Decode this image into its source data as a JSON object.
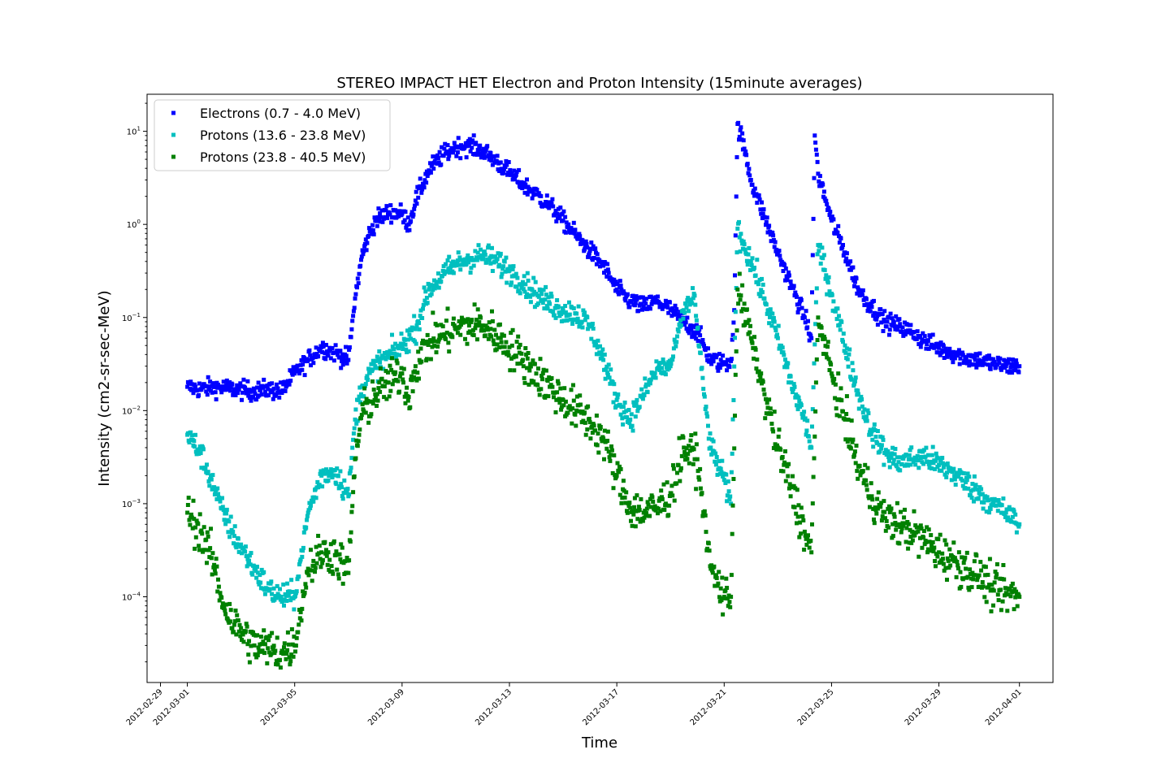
{
  "chart_data": {
    "type": "scatter",
    "title": "STEREO IMPACT HET Electron and Proton Intensity (15minute averages)",
    "xlabel": "Time",
    "ylabel": "Intensity (cm2-sr-sec-MeV)",
    "xlim": [
      "2012-02-28T12:00",
      "2012-04-02T06:00"
    ],
    "ylim": [
      1.2e-05,
      25
    ],
    "yscale": "log",
    "x_ticks": [
      "2012-02-29",
      "2012-03-01",
      "2012-03-05",
      "2012-03-09",
      "2012-03-13",
      "2012-03-17",
      "2012-03-21",
      "2012-03-25",
      "2012-03-29",
      "2012-04-01"
    ],
    "y_ticks": [
      {
        "value": 0.0001,
        "base": "10",
        "exp": "−4"
      },
      {
        "value": 0.001,
        "base": "10",
        "exp": "−3"
      },
      {
        "value": 0.01,
        "base": "10",
        "exp": "−2"
      },
      {
        "value": 0.1,
        "base": "10",
        "exp": "−1"
      },
      {
        "value": 1,
        "base": "10",
        "exp": "0"
      },
      {
        "value": 10,
        "base": "10",
        "exp": "1"
      }
    ],
    "grid": false,
    "legend_position": "top-left",
    "series": [
      {
        "name": "Electrons (0.7 - 4.0 MeV)",
        "color": "#0000ff",
        "points": [
          [
            "2012-03-01T00:00",
            0.018
          ],
          [
            "2012-03-01T12:00",
            0.017
          ],
          [
            "2012-03-02T00:00",
            0.018
          ],
          [
            "2012-03-02T18:00",
            0.017
          ],
          [
            "2012-03-03T12:00",
            0.016
          ],
          [
            "2012-03-04T00:00",
            0.017
          ],
          [
            "2012-03-04T12:00",
            0.016
          ],
          [
            "2012-03-05T00:00",
            0.025
          ],
          [
            "2012-03-05T12:00",
            0.035
          ],
          [
            "2012-03-06T00:00",
            0.048
          ],
          [
            "2012-03-06T12:00",
            0.042
          ],
          [
            "2012-03-07T00:00",
            0.035
          ],
          [
            "2012-03-07T06:00",
            0.16
          ],
          [
            "2012-03-07T12:00",
            0.45
          ],
          [
            "2012-03-07T18:00",
            0.75
          ],
          [
            "2012-03-08T00:00",
            1.1
          ],
          [
            "2012-03-08T12:00",
            1.35
          ],
          [
            "2012-03-09T00:00",
            1.3
          ],
          [
            "2012-03-09T06:00",
            1.0
          ],
          [
            "2012-03-09T12:00",
            1.8
          ],
          [
            "2012-03-10T00:00",
            3.8
          ],
          [
            "2012-03-10T12:00",
            5.5
          ],
          [
            "2012-03-11T00:00",
            6.8
          ],
          [
            "2012-03-11T12:00",
            7.0
          ],
          [
            "2012-03-12T00:00",
            6.2
          ],
          [
            "2012-03-12T12:00",
            4.8
          ],
          [
            "2012-03-13T00:00",
            3.6
          ],
          [
            "2012-03-13T12:00",
            2.7
          ],
          [
            "2012-03-14T00:00",
            2.1
          ],
          [
            "2012-03-14T12:00",
            1.6
          ],
          [
            "2012-03-15T00:00",
            1.1
          ],
          [
            "2012-03-15T12:00",
            0.75
          ],
          [
            "2012-03-16T00:00",
            0.52
          ],
          [
            "2012-03-16T12:00",
            0.36
          ],
          [
            "2012-03-17T00:00",
            0.2
          ],
          [
            "2012-03-17T12:00",
            0.15
          ],
          [
            "2012-03-18T00:00",
            0.13
          ],
          [
            "2012-03-18T12:00",
            0.15
          ],
          [
            "2012-03-19T00:00",
            0.12
          ],
          [
            "2012-03-19T12:00",
            0.09
          ],
          [
            "2012-03-20T00:00",
            0.07
          ],
          [
            "2012-03-20T12:00",
            0.035
          ],
          [
            "2012-03-21T00:00",
            0.032
          ],
          [
            "2012-03-21T06:00",
            0.034
          ],
          [
            "2012-03-21T09:00",
            0.12
          ],
          [
            "2012-03-21T12:00",
            12.0
          ],
          [
            "2012-03-21T18:00",
            6.5
          ],
          [
            "2012-03-22T00:00",
            3.0
          ],
          [
            "2012-03-22T12:00",
            1.2
          ],
          [
            "2012-03-23T00:00",
            0.5
          ],
          [
            "2012-03-23T12:00",
            0.22
          ],
          [
            "2012-03-24T00:00",
            0.1
          ],
          [
            "2012-03-24T06:00",
            0.06
          ],
          [
            "2012-03-24T09:00",
            9.0
          ],
          [
            "2012-03-24T12:00",
            3.5
          ],
          [
            "2012-03-25T00:00",
            1.1
          ],
          [
            "2012-03-25T12:00",
            0.5
          ],
          [
            "2012-03-26T00:00",
            0.2
          ],
          [
            "2012-03-26T12:00",
            0.13
          ],
          [
            "2012-03-27T00:00",
            0.09
          ],
          [
            "2012-03-27T12:00",
            0.08
          ],
          [
            "2012-03-28T00:00",
            0.07
          ],
          [
            "2012-03-28T12:00",
            0.055
          ],
          [
            "2012-03-29T00:00",
            0.047
          ],
          [
            "2012-03-29T12:00",
            0.042
          ],
          [
            "2012-03-30T00:00",
            0.037
          ],
          [
            "2012-03-30T12:00",
            0.035
          ],
          [
            "2012-03-31T00:00",
            0.032
          ],
          [
            "2012-03-31T12:00",
            0.03
          ],
          [
            "2012-04-01T00:00",
            0.03
          ]
        ]
      },
      {
        "name": "Protons (13.6 - 23.8 MeV)",
        "color": "#00bfbf",
        "points": [
          [
            "2012-03-01T00:00",
            0.0055
          ],
          [
            "2012-03-01T12:00",
            0.0035
          ],
          [
            "2012-03-02T00:00",
            0.0015
          ],
          [
            "2012-03-02T06:00",
            0.0009
          ],
          [
            "2012-03-02T18:00",
            0.00045
          ],
          [
            "2012-03-03T12:00",
            0.0002
          ],
          [
            "2012-03-04T00:00",
            0.00012
          ],
          [
            "2012-03-04T12:00",
            0.0001
          ],
          [
            "2012-03-05T00:00",
            0.0001
          ],
          [
            "2012-03-05T12:00",
            0.0008
          ],
          [
            "2012-03-06T00:00",
            0.002
          ],
          [
            "2012-03-06T12:00",
            0.0023
          ],
          [
            "2012-03-07T00:00",
            0.0012
          ],
          [
            "2012-03-07T06:00",
            0.008
          ],
          [
            "2012-03-07T12:00",
            0.018
          ],
          [
            "2012-03-08T00:00",
            0.03
          ],
          [
            "2012-03-08T12:00",
            0.038
          ],
          [
            "2012-03-09T00:00",
            0.05
          ],
          [
            "2012-03-09T12:00",
            0.075
          ],
          [
            "2012-03-10T00:00",
            0.2
          ],
          [
            "2012-03-10T12:00",
            0.28
          ],
          [
            "2012-03-11T00:00",
            0.37
          ],
          [
            "2012-03-11T12:00",
            0.43
          ],
          [
            "2012-03-12T00:00",
            0.46
          ],
          [
            "2012-03-12T12:00",
            0.4
          ],
          [
            "2012-03-13T00:00",
            0.32
          ],
          [
            "2012-03-13T12:00",
            0.24
          ],
          [
            "2012-03-14T00:00",
            0.18
          ],
          [
            "2012-03-14T12:00",
            0.14
          ],
          [
            "2012-03-15T00:00",
            0.12
          ],
          [
            "2012-03-15T12:00",
            0.11
          ],
          [
            "2012-03-16T00:00",
            0.08
          ],
          [
            "2012-03-16T12:00",
            0.035
          ],
          [
            "2012-03-17T00:00",
            0.013
          ],
          [
            "2012-03-17T12:00",
            0.008
          ],
          [
            "2012-03-18T00:00",
            0.015
          ],
          [
            "2012-03-18T12:00",
            0.028
          ],
          [
            "2012-03-19T00:00",
            0.03
          ],
          [
            "2012-03-19T12:00",
            0.12
          ],
          [
            "2012-03-19T21:00",
            0.18
          ],
          [
            "2012-03-20T06:00",
            0.015
          ],
          [
            "2012-03-20T12:00",
            0.004
          ],
          [
            "2012-03-21T00:00",
            0.0018
          ],
          [
            "2012-03-21T06:00",
            0.001
          ],
          [
            "2012-03-21T12:00",
            0.9
          ],
          [
            "2012-03-22T00:00",
            0.4
          ],
          [
            "2012-03-22T12:00",
            0.16
          ],
          [
            "2012-03-23T00:00",
            0.06
          ],
          [
            "2012-03-23T12:00",
            0.02
          ],
          [
            "2012-03-24T00:00",
            0.008
          ],
          [
            "2012-03-24T06:00",
            0.004
          ],
          [
            "2012-03-24T12:00",
            0.6
          ],
          [
            "2012-03-25T00:00",
            0.18
          ],
          [
            "2012-03-25T12:00",
            0.05
          ],
          [
            "2012-03-26T00:00",
            0.015
          ],
          [
            "2012-03-26T12:00",
            0.006
          ],
          [
            "2012-03-27T00:00",
            0.0035
          ],
          [
            "2012-03-27T12:00",
            0.0028
          ],
          [
            "2012-03-28T00:00",
            0.003
          ],
          [
            "2012-03-28T12:00",
            0.0032
          ],
          [
            "2012-03-29T00:00",
            0.0026
          ],
          [
            "2012-03-29T12:00",
            0.0022
          ],
          [
            "2012-03-30T00:00",
            0.0017
          ],
          [
            "2012-03-30T12:00",
            0.0013
          ],
          [
            "2012-03-31T00:00",
            0.001
          ],
          [
            "2012-03-31T12:00",
            0.0008
          ],
          [
            "2012-04-01T00:00",
            0.0006
          ]
        ]
      },
      {
        "name": "Protons (23.8 - 40.5 MeV)",
        "color": "#008000",
        "points": [
          [
            "2012-03-01T00:00",
            0.0008
          ],
          [
            "2012-03-01T12:00",
            0.0005
          ],
          [
            "2012-03-02T00:00",
            0.00022
          ],
          [
            "2012-03-02T06:00",
            0.0001
          ],
          [
            "2012-03-02T18:00",
            5e-05
          ],
          [
            "2012-03-03T12:00",
            3e-05
          ],
          [
            "2012-03-04T00:00",
            2.8e-05
          ],
          [
            "2012-03-04T12:00",
            2.5e-05
          ],
          [
            "2012-03-05T00:00",
            3e-05
          ],
          [
            "2012-03-05T12:00",
            0.0002
          ],
          [
            "2012-03-06T00:00",
            0.0003
          ],
          [
            "2012-03-06T12:00",
            0.00028
          ],
          [
            "2012-03-07T00:00",
            0.00018
          ],
          [
            "2012-03-07T06:00",
            0.003
          ],
          [
            "2012-03-07T12:00",
            0.009
          ],
          [
            "2012-03-08T00:00",
            0.015
          ],
          [
            "2012-03-08T12:00",
            0.02
          ],
          [
            "2012-03-09T00:00",
            0.025
          ],
          [
            "2012-03-09T06:00",
            0.014
          ],
          [
            "2012-03-09T12:00",
            0.03
          ],
          [
            "2012-03-10T00:00",
            0.055
          ],
          [
            "2012-03-10T12:00",
            0.065
          ],
          [
            "2012-03-11T00:00",
            0.075
          ],
          [
            "2012-03-11T12:00",
            0.082
          ],
          [
            "2012-03-12T00:00",
            0.082
          ],
          [
            "2012-03-12T12:00",
            0.065
          ],
          [
            "2012-03-13T00:00",
            0.048
          ],
          [
            "2012-03-13T12:00",
            0.035
          ],
          [
            "2012-03-14T00:00",
            0.025
          ],
          [
            "2012-03-14T12:00",
            0.018
          ],
          [
            "2012-03-15T00:00",
            0.013
          ],
          [
            "2012-03-15T12:00",
            0.01
          ],
          [
            "2012-03-16T00:00",
            0.0075
          ],
          [
            "2012-03-16T12:00",
            0.005
          ],
          [
            "2012-03-17T00:00",
            0.002
          ],
          [
            "2012-03-17T12:00",
            0.0009
          ],
          [
            "2012-03-18T00:00",
            0.0008
          ],
          [
            "2012-03-18T12:00",
            0.0009
          ],
          [
            "2012-03-19T00:00",
            0.0013
          ],
          [
            "2012-03-19T12:00",
            0.004
          ],
          [
            "2012-03-20T00:00",
            0.003
          ],
          [
            "2012-03-20T12:00",
            0.0002
          ],
          [
            "2012-03-21T00:00",
            0.0001
          ],
          [
            "2012-03-21T06:00",
            0.0001
          ],
          [
            "2012-03-21T12:00",
            0.2
          ],
          [
            "2012-03-22T00:00",
            0.06
          ],
          [
            "2012-03-22T12:00",
            0.015
          ],
          [
            "2012-03-23T00:00",
            0.004
          ],
          [
            "2012-03-23T12:00",
            0.0015
          ],
          [
            "2012-03-24T00:00",
            0.0005
          ],
          [
            "2012-03-24T06:00",
            0.0003
          ],
          [
            "2012-03-24T12:00",
            0.1
          ],
          [
            "2012-03-25T00:00",
            0.025
          ],
          [
            "2012-03-25T12:00",
            0.008
          ],
          [
            "2012-03-26T00:00",
            0.0025
          ],
          [
            "2012-03-26T12:00",
            0.0012
          ],
          [
            "2012-03-27T00:00",
            0.0007
          ],
          [
            "2012-03-27T12:00",
            0.0006
          ],
          [
            "2012-03-28T00:00",
            0.0005
          ],
          [
            "2012-03-28T12:00",
            0.0004
          ],
          [
            "2012-03-29T00:00",
            0.0003
          ],
          [
            "2012-03-29T12:00",
            0.00025
          ],
          [
            "2012-03-30T00:00",
            0.0002
          ],
          [
            "2012-03-30T12:00",
            0.00017
          ],
          [
            "2012-03-31T00:00",
            0.00012
          ],
          [
            "2012-03-31T12:00",
            0.00011
          ],
          [
            "2012-04-01T00:00",
            0.0001
          ]
        ]
      }
    ]
  }
}
